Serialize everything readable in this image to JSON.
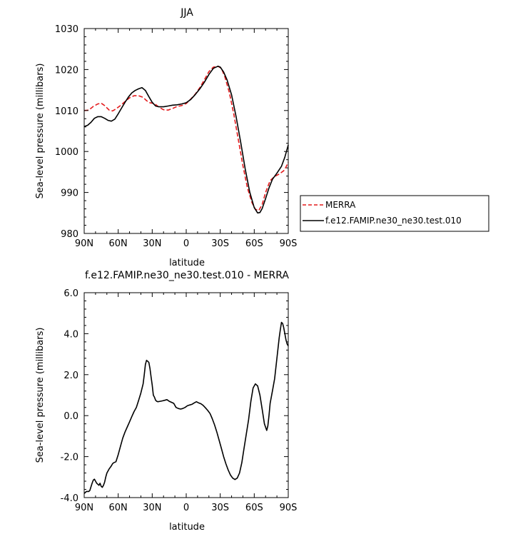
{
  "chart_data": [
    {
      "type": "line",
      "title": "JJA",
      "xlabel": "latitude",
      "ylabel": "Sea-level pressure (millibars)",
      "xlim": [
        90,
        -90
      ],
      "ylim": [
        980,
        1030
      ],
      "xticks": [
        "90N",
        "60N",
        "30N",
        "0",
        "30S",
        "60S",
        "90S"
      ],
      "xtick_values": [
        90,
        60,
        30,
        0,
        -30,
        -60,
        -90
      ],
      "yticks": [
        "980",
        "990",
        "1000",
        "1010",
        "1020",
        "1030"
      ],
      "ytick_values": [
        980,
        990,
        1000,
        1010,
        1020,
        1030
      ],
      "legend": [
        "MERRA",
        "f.e12.FAMIP.ne30_ne30.test.010"
      ],
      "legend_placement": "right, outside",
      "series": [
        {
          "name": "MERRA",
          "color": "#e41a1c",
          "dash": "dashed",
          "x": [
            90,
            86,
            82,
            78,
            75,
            72,
            68,
            65,
            62,
            58,
            54,
            50,
            46,
            42,
            38,
            35,
            32,
            28,
            24,
            20,
            16,
            12,
            8,
            4,
            0,
            -4,
            -8,
            -12,
            -16,
            -20,
            -24,
            -28,
            -31,
            -34,
            -38,
            -42,
            -46,
            -50,
            -54,
            -58,
            -61,
            -64,
            -67,
            -70,
            -74,
            -78,
            -82,
            -86,
            -88,
            -90
          ],
          "y": [
            1010.0,
            1010.1,
            1011.0,
            1011.6,
            1011.8,
            1011.2,
            1010.1,
            1009.9,
            1010.4,
            1011.2,
            1012.2,
            1013.1,
            1013.6,
            1013.6,
            1013.2,
            1012.4,
            1011.9,
            1011.7,
            1010.8,
            1010.2,
            1010.1,
            1010.5,
            1011.0,
            1011.2,
            1011.7,
            1012.8,
            1014.0,
            1015.6,
            1017.5,
            1019.5,
            1020.6,
            1020.8,
            1020.3,
            1018.3,
            1014.4,
            1009.1,
            1002.8,
            996.6,
            991.1,
            987.5,
            985.9,
            985.6,
            987.1,
            990.0,
            992.9,
            993.9,
            994.5,
            995.3,
            996.2,
            997.4
          ]
        },
        {
          "name": "f.e12.FAMIP.ne30_ne30.test.010",
          "color": "#000000",
          "dash": "solid",
          "x": [
            90,
            87,
            84,
            81,
            78,
            75,
            72,
            69,
            66,
            63,
            60,
            57,
            54,
            51,
            48,
            45,
            42,
            39,
            36,
            33,
            30,
            27,
            24,
            20,
            16,
            12,
            8,
            4,
            0,
            -4,
            -8,
            -12,
            -16,
            -20,
            -24,
            -28,
            -30,
            -33,
            -36,
            -40,
            -44,
            -48,
            -52,
            -56,
            -60,
            -63,
            -65,
            -67,
            -70,
            -73,
            -76,
            -80,
            -84,
            -87,
            -89,
            -90
          ],
          "y": [
            1006.1,
            1006.4,
            1007.1,
            1008.1,
            1008.5,
            1008.5,
            1008.1,
            1007.6,
            1007.4,
            1007.9,
            1009.2,
            1010.6,
            1012.0,
            1013.3,
            1014.3,
            1014.9,
            1015.3,
            1015.6,
            1014.9,
            1013.4,
            1012.0,
            1011.1,
            1010.9,
            1010.9,
            1011.1,
            1011.3,
            1011.4,
            1011.6,
            1011.9,
            1012.7,
            1013.9,
            1015.3,
            1016.9,
            1018.8,
            1020.3,
            1020.8,
            1020.6,
            1019.4,
            1017.5,
            1013.8,
            1008.5,
            1002.3,
            995.8,
            990.1,
            986.3,
            985.0,
            985.1,
            986.1,
            988.5,
            991.1,
            993.2,
            994.7,
            996.4,
            998.6,
            1000.6,
            1001.6
          ]
        }
      ]
    },
    {
      "type": "line",
      "title": "f.e12.FAMIP.ne30_ne30.test.010 - MERRA",
      "xlabel": "latitude",
      "ylabel": "Sea-level pressure (millibars)",
      "xlim": [
        90,
        -90
      ],
      "ylim": [
        -4,
        6
      ],
      "xticks": [
        "90N",
        "60N",
        "30N",
        "0",
        "30S",
        "60S",
        "90S"
      ],
      "xtick_values": [
        90,
        60,
        30,
        0,
        -30,
        -60,
        -90
      ],
      "yticks": [
        "-4.0",
        "-2.0",
        "0.0",
        "2.0",
        "4.0",
        "6.0"
      ],
      "ytick_values": [
        -4,
        -2,
        0,
        2,
        4,
        6
      ],
      "series": [
        {
          "color": "#000000",
          "dash": "solid",
          "x": [
            90,
            88,
            86,
            85,
            83,
            82,
            81,
            80,
            79,
            78,
            77,
            76,
            75,
            74,
            73,
            72,
            71,
            70,
            68,
            66,
            65,
            64,
            62,
            60,
            58,
            56,
            54,
            52,
            50,
            48,
            46,
            44,
            42,
            40,
            38,
            37,
            36,
            35,
            34,
            33,
            32,
            31,
            30,
            29,
            28,
            27,
            26,
            25,
            23,
            21,
            19,
            17,
            15,
            13,
            11,
            9,
            7,
            5,
            3,
            1,
            -1,
            -3,
            -5,
            -7,
            -9,
            -11,
            -13,
            -15,
            -17,
            -19,
            -21,
            -23,
            -25,
            -27,
            -29,
            -31,
            -33,
            -35,
            -37,
            -39,
            -41,
            -43,
            -45,
            -47,
            -49,
            -51,
            -53,
            -55,
            -57,
            -59,
            -61,
            -63,
            -65,
            -67,
            -69,
            -71,
            -72,
            -73,
            -74,
            -76,
            -78,
            -79,
            -80,
            -81,
            -82,
            -83,
            -84,
            -85,
            -86,
            -87,
            -88,
            -89,
            -90
          ],
          "y": [
            -3.8,
            -3.7,
            -3.7,
            -3.65,
            -3.3,
            -3.15,
            -3.1,
            -3.2,
            -3.3,
            -3.35,
            -3.4,
            -3.3,
            -3.45,
            -3.5,
            -3.4,
            -3.25,
            -3.0,
            -2.8,
            -2.6,
            -2.45,
            -2.35,
            -2.3,
            -2.25,
            -1.9,
            -1.5,
            -1.1,
            -0.8,
            -0.55,
            -0.3,
            -0.05,
            0.2,
            0.4,
            0.75,
            1.1,
            1.55,
            2.0,
            2.5,
            2.7,
            2.65,
            2.6,
            2.3,
            1.9,
            1.5,
            1.0,
            0.9,
            0.75,
            0.7,
            0.68,
            0.7,
            0.72,
            0.75,
            0.78,
            0.7,
            0.65,
            0.6,
            0.4,
            0.35,
            0.32,
            0.35,
            0.4,
            0.48,
            0.52,
            0.55,
            0.62,
            0.68,
            0.62,
            0.58,
            0.5,
            0.38,
            0.25,
            0.1,
            -0.15,
            -0.45,
            -0.8,
            -1.2,
            -1.6,
            -2.0,
            -2.35,
            -2.65,
            -2.9,
            -3.05,
            -3.12,
            -3.05,
            -2.8,
            -2.3,
            -1.6,
            -0.9,
            -0.2,
            0.7,
            1.35,
            1.55,
            1.45,
            1.0,
            0.3,
            -0.4,
            -0.72,
            -0.5,
            0.0,
            0.6,
            1.2,
            1.8,
            2.3,
            2.8,
            3.3,
            3.8,
            4.2,
            4.55,
            4.5,
            4.3,
            4.0,
            3.7,
            3.5,
            3.4
          ]
        }
      ]
    }
  ]
}
